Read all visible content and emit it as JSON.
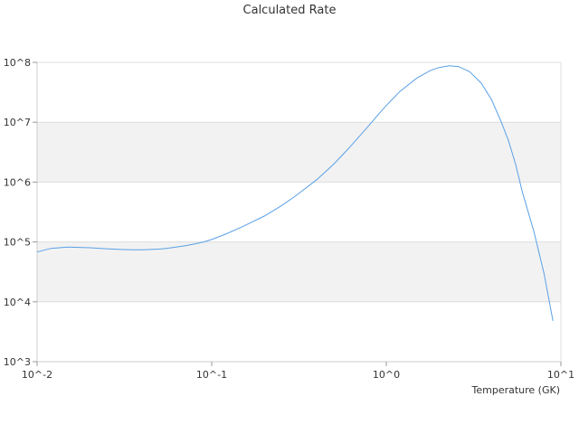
{
  "chart_data": {
    "type": "line",
    "title": "Calculated Rate",
    "xlabel": "Temperature (GK)",
    "ylabel": "",
    "xscale": "log",
    "yscale": "log",
    "xlim": [
      0.01,
      10
    ],
    "ylim": [
      1000,
      100000000
    ],
    "x_ticks": [
      "10^-2",
      "10^-1",
      "10^0",
      "10^1"
    ],
    "y_ticks": [
      "10^3",
      "10^4",
      "10^5",
      "10^6",
      "10^7",
      "10^8"
    ],
    "grid": true,
    "band_fill": "alternating light grey horizontal bands between decades",
    "series": [
      {
        "color": "#5aa0e6",
        "x": [
          0.01,
          0.012,
          0.015,
          0.02,
          0.025,
          0.03,
          0.035,
          0.04,
          0.045,
          0.05,
          0.055,
          0.06,
          0.07,
          0.08,
          0.09,
          0.1,
          0.12,
          0.15,
          0.2,
          0.25,
          0.3,
          0.4,
          0.5,
          0.6,
          0.7,
          0.8,
          0.9,
          1.0,
          1.2,
          1.5,
          1.8,
          2.0,
          2.3,
          2.6,
          3.0,
          3.5,
          4.0,
          4.5,
          5.0,
          5.5,
          6.0,
          7.0,
          8.0,
          9.0
        ],
        "y": [
          68000,
          78000,
          82000,
          80000,
          77000,
          75000,
          74000,
          74000,
          75000,
          76000,
          78000,
          81000,
          86000,
          93000,
          100000,
          110000,
          135000,
          180000,
          270000,
          400000,
          580000,
          1100000,
          2000000,
          3500000,
          5800000,
          9000000,
          13500000,
          19000000,
          33000000,
          55000000,
          74000000,
          82000000,
          88000000,
          85000000,
          70000000,
          45000000,
          24000000,
          11000000,
          5000000,
          2000000,
          700000,
          150000,
          30000,
          4800
        ]
      }
    ]
  }
}
